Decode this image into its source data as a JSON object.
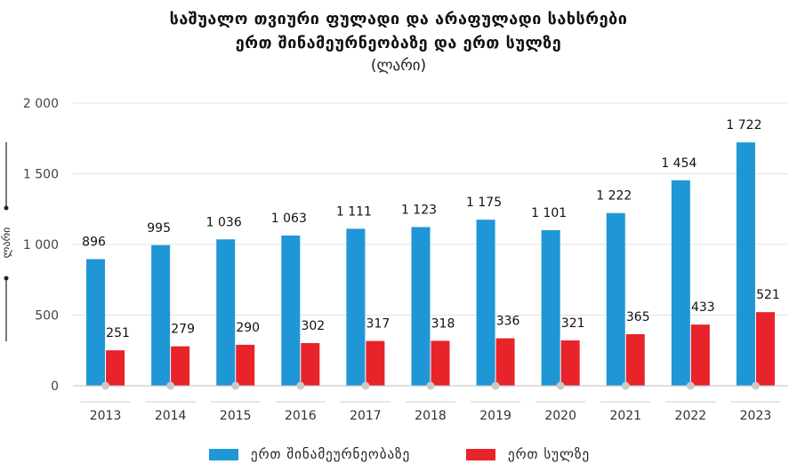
{
  "chart_data": {
    "type": "bar",
    "title": [
      "საშუალო თვიური ფულადი და არაფულადი სახსრები",
      "ერთ შინამეურნეობაზე და ერთ სულზე"
    ],
    "subtitle": "(ლარი)",
    "ylabel": "ლარი",
    "xlabel": "",
    "categories": [
      "2013",
      "2014",
      "2015",
      "2016",
      "2017",
      "2018",
      "2019",
      "2020",
      "2021",
      "2022",
      "2023"
    ],
    "series": [
      {
        "name": "ერთ შინამეურნეობაზე",
        "color": "#1f96d6",
        "values": [
          896,
          995,
          1036,
          1063,
          1111,
          1123,
          1175,
          1101,
          1222,
          1454,
          1722
        ],
        "labels": [
          "896",
          "995",
          "1 036",
          "1 063",
          "1 111",
          "1 123",
          "1 175",
          "1 101",
          "1 222",
          "1 454",
          "1 722"
        ]
      },
      {
        "name": "ერთ სულზე",
        "color": "#e8232a",
        "values": [
          251,
          279,
          290,
          302,
          317,
          318,
          336,
          321,
          365,
          433,
          521
        ],
        "labels": [
          "251",
          "279",
          "290",
          "302",
          "317",
          "318",
          "336",
          "321",
          "365",
          "433",
          "521"
        ]
      }
    ],
    "yticks": [
      0,
      500,
      1000,
      1500,
      2000
    ],
    "ytick_labels": [
      "0",
      "500",
      "1 000",
      "1 500",
      "2 000"
    ],
    "ylim": [
      0,
      2000
    ],
    "grid": true,
    "legend_position": "bottom"
  }
}
